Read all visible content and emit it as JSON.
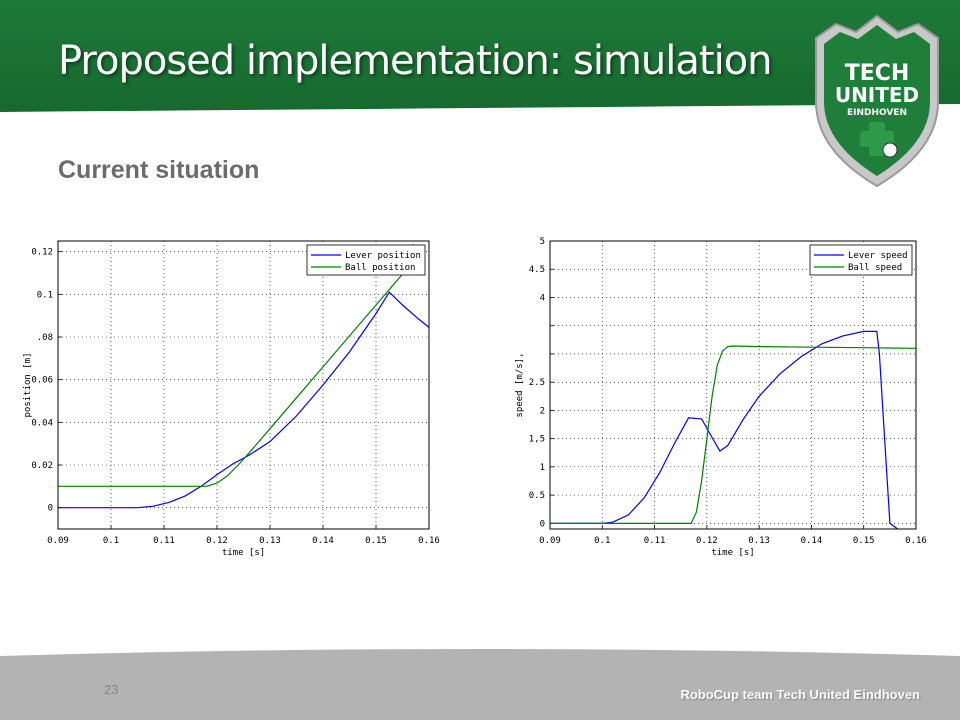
{
  "slide": {
    "title": "Proposed implementation: simulation",
    "subtitle": "Current situation",
    "page_number": "23",
    "footer": "RoboCup team Tech United Eindhoven"
  },
  "logo": {
    "line1": "TECH",
    "line2": "UNITED",
    "line3": "EINDHOVEN"
  },
  "colors": {
    "header_green": "#1a7535",
    "blue": "#0000ff",
    "green": "#008000",
    "footer_gray": "#b3b3b3"
  },
  "chart_data": [
    {
      "type": "line",
      "xlabel": "time [s]",
      "ylabel": "position [m]",
      "xlim": [
        0.09,
        0.16
      ],
      "ylim": [
        -0.01,
        0.125
      ],
      "grid": true,
      "legend_position": "top-right",
      "x_ticks": [
        {
          "value": 0.09,
          "label": "0.09"
        },
        {
          "value": 0.1,
          "label": "0.1"
        },
        {
          "value": 0.11,
          "label": "0.11"
        },
        {
          "value": 0.12,
          "label": "0.12"
        },
        {
          "value": 0.13,
          "label": "0.13"
        },
        {
          "value": 0.14,
          "label": "0.14"
        },
        {
          "value": 0.15,
          "label": "0.15"
        },
        {
          "value": 0.16,
          "label": "0.16"
        }
      ],
      "y_ticks": [
        {
          "value": 0,
          "label": "0"
        },
        {
          "value": 0.02,
          "label": "0.02"
        },
        {
          "value": 0.04,
          "label": "0.04"
        },
        {
          "value": 0.06,
          "label": "0.06"
        },
        {
          "value": 0.08,
          "label": ".08"
        },
        {
          "value": 0.1,
          "label": "0.1"
        },
        {
          "value": 0.12,
          "label": "0.12"
        }
      ],
      "series": [
        {
          "name": "Lever position",
          "color": "#0000ff",
          "x": [
            0.09,
            0.105,
            0.108,
            0.111,
            0.114,
            0.117,
            0.12,
            0.123,
            0.126,
            0.13,
            0.135,
            0.14,
            0.145,
            0.15,
            0.1525,
            0.155,
            0.158,
            0.16
          ],
          "y": [
            0,
            0,
            0.0007,
            0.0025,
            0.0055,
            0.01,
            0.0155,
            0.0205,
            0.0245,
            0.031,
            0.043,
            0.0575,
            0.073,
            0.091,
            0.101,
            0.095,
            0.0885,
            0.0845
          ]
        },
        {
          "name": "Ball position",
          "color": "#008000",
          "x": [
            0.09,
            0.118,
            0.12,
            0.122,
            0.124,
            0.126,
            0.13,
            0.135,
            0.14,
            0.145,
            0.15,
            0.155,
            0.157
          ],
          "y": [
            0.01,
            0.01,
            0.0115,
            0.015,
            0.02,
            0.0255,
            0.037,
            0.0515,
            0.066,
            0.0805,
            0.095,
            0.1095,
            0.1235
          ]
        }
      ]
    },
    {
      "type": "line",
      "xlabel": "time [s]",
      "ylabel": "speed [m/s],",
      "xlim": [
        0.09,
        0.16
      ],
      "ylim": [
        -0.1,
        5.0
      ],
      "grid": true,
      "legend_position": "top-right",
      "x_ticks": [
        {
          "value": 0.09,
          "label": "0.09"
        },
        {
          "value": 0.1,
          "label": "0.1"
        },
        {
          "value": 0.11,
          "label": "0.11"
        },
        {
          "value": 0.12,
          "label": "0.12"
        },
        {
          "value": 0.13,
          "label": "0.13"
        },
        {
          "value": 0.14,
          "label": "0.14"
        },
        {
          "value": 0.15,
          "label": "0.15"
        },
        {
          "value": 0.16,
          "label": "0.16"
        }
      ],
      "y_ticks": [
        {
          "value": 0,
          "label": "0"
        },
        {
          "value": 0.5,
          "label": "0.5"
        },
        {
          "value": 1,
          "label": "1"
        },
        {
          "value": 1.5,
          "label": "1,5"
        },
        {
          "value": 2,
          "label": "2"
        },
        {
          "value": 2.5,
          "label": "2.5"
        },
        {
          "value": 3,
          "label": ""
        },
        {
          "value": 3.5,
          "label": ""
        },
        {
          "value": 4,
          "label": "4"
        },
        {
          "value": 4.5,
          "label": "4.5"
        },
        {
          "value": 5,
          "label": "5"
        }
      ],
      "series": [
        {
          "name": "Lever speed",
          "color": "#0000ff",
          "x": [
            0.09,
            0.1,
            0.102,
            0.105,
            0.108,
            0.111,
            0.114,
            0.1165,
            0.119,
            0.121,
            0.1225,
            0.124,
            0.127,
            0.13,
            0.134,
            0.138,
            0.142,
            0.146,
            0.15,
            0.1525,
            0.153,
            0.154,
            0.155,
            0.1565
          ],
          "y": [
            0,
            0,
            0.02,
            0.15,
            0.45,
            0.9,
            1.45,
            1.87,
            1.85,
            1.52,
            1.28,
            1.38,
            1.85,
            2.25,
            2.65,
            2.95,
            3.18,
            3.32,
            3.4,
            3.4,
            3.0,
            1.5,
            0.0,
            -0.1
          ]
        },
        {
          "name": "Ball speed",
          "color": "#008000",
          "x": [
            0.09,
            0.117,
            0.118,
            0.119,
            0.12,
            0.121,
            0.122,
            0.123,
            0.124,
            0.125,
            0.13,
            0.14,
            0.15,
            0.16
          ],
          "y": [
            0,
            0,
            0.2,
            0.75,
            1.5,
            2.25,
            2.8,
            3.05,
            3.13,
            3.14,
            3.13,
            3.12,
            3.11,
            3.1
          ]
        }
      ]
    }
  ]
}
